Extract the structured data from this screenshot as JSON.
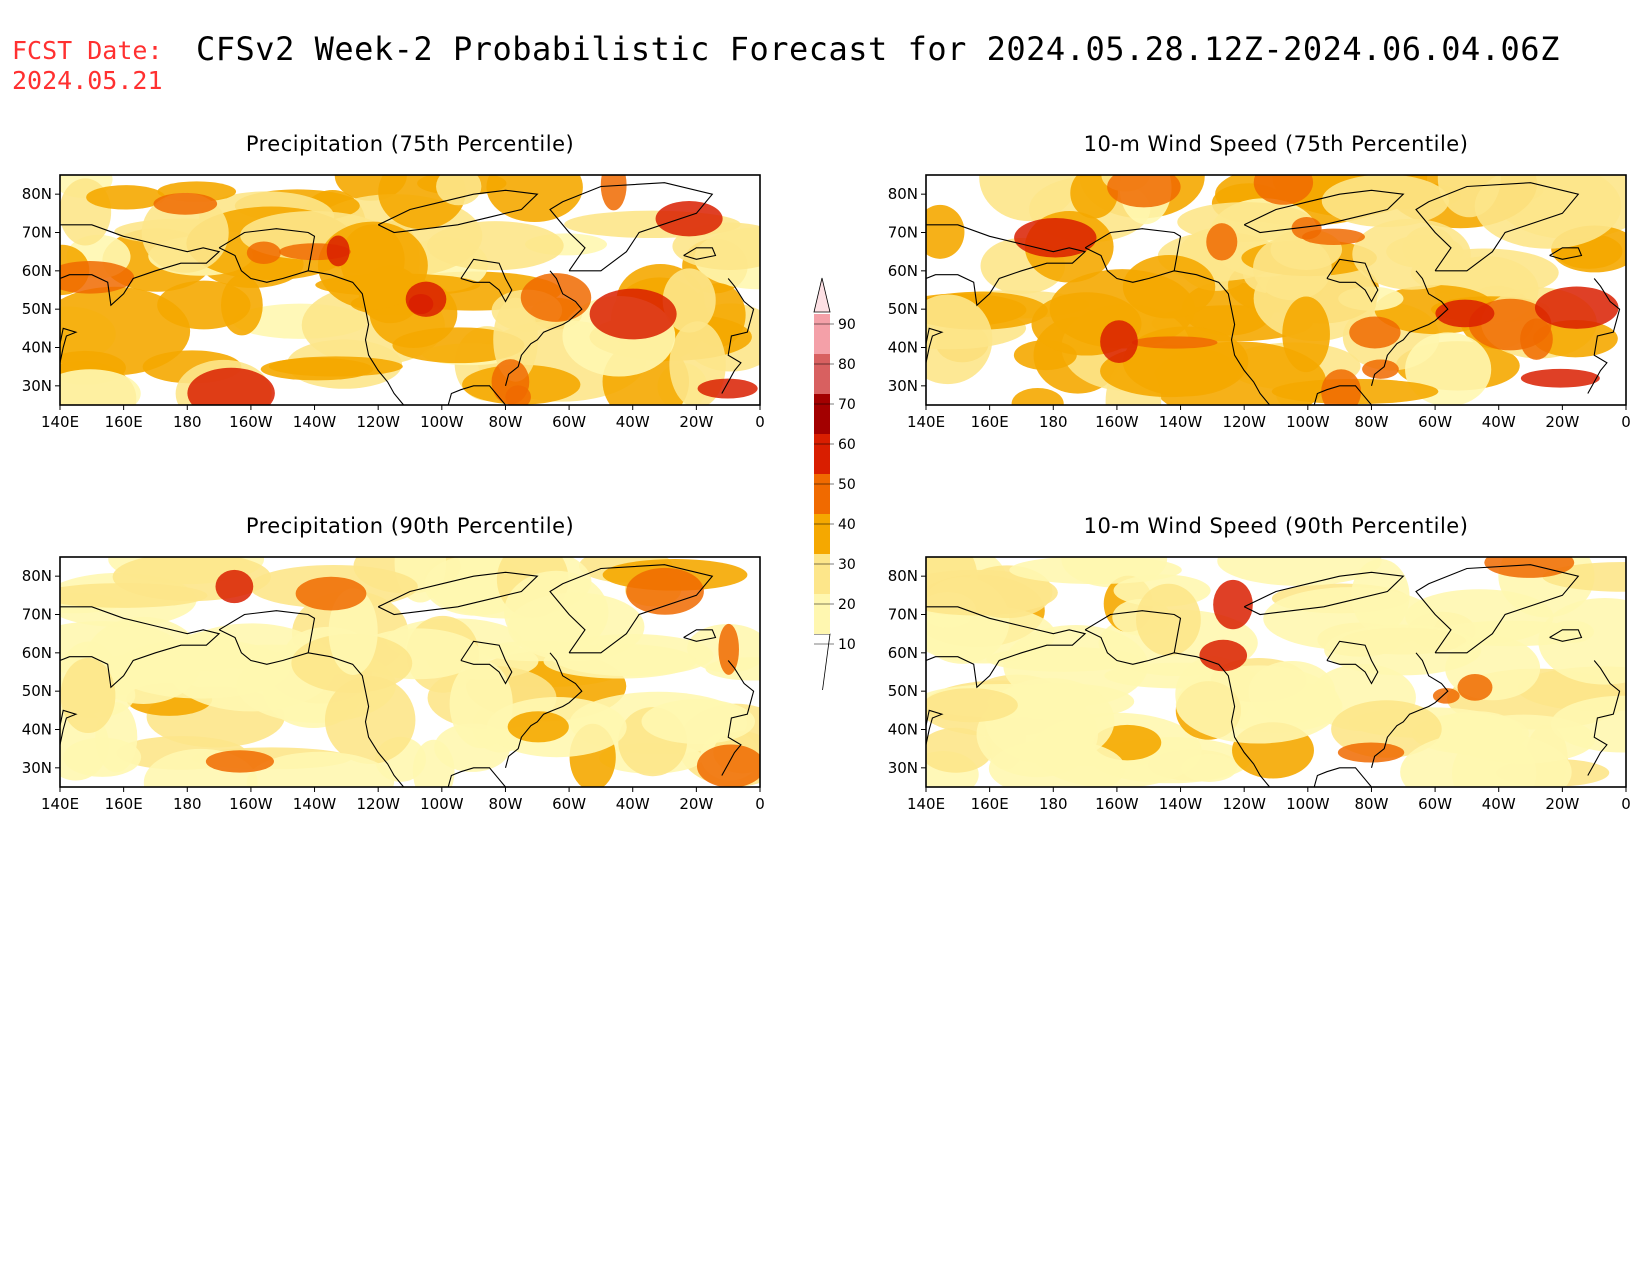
{
  "header": {
    "fcst_label": "FCST Date:",
    "fcst_date": "2024.05.21",
    "title": "CFSv2 Week-2 Probabilistic Forecast for 2024.05.28.12Z-2024.06.04.06Z"
  },
  "panels": [
    {
      "id": "precip75",
      "title": "Precipitation (75th Percentile)",
      "intensity": 0.85
    },
    {
      "id": "wind75",
      "title": "10-m Wind Speed (75th Percentile)",
      "intensity": 0.9
    },
    {
      "id": "precip90",
      "title": "Precipitation (90th Percentile)",
      "intensity": 0.35
    },
    {
      "id": "wind90",
      "title": "10-m Wind Speed (90th Percentile)",
      "intensity": 0.35
    }
  ],
  "axes": {
    "lat_labels": [
      "80N",
      "70N",
      "60N",
      "50N",
      "40N",
      "30N"
    ],
    "lat_values": [
      80,
      70,
      60,
      50,
      40,
      30
    ],
    "lon_labels": [
      "140E",
      "160E",
      "180",
      "160W",
      "140W",
      "120W",
      "100W",
      "80W",
      "60W",
      "40W",
      "20W",
      "0"
    ],
    "lon_range": [
      140,
      360
    ],
    "lat_range": [
      25,
      85
    ]
  },
  "colorbar": {
    "labels": [
      "10",
      "20",
      "30",
      "40",
      "50",
      "60",
      "70",
      "80",
      "90"
    ],
    "colors": [
      "#fff7b0",
      "#fde68a",
      "#f5a800",
      "#f06a00",
      "#d91e00",
      "#a30000",
      "#d86060",
      "#f4a0a8",
      "#fde0e4"
    ]
  }
}
